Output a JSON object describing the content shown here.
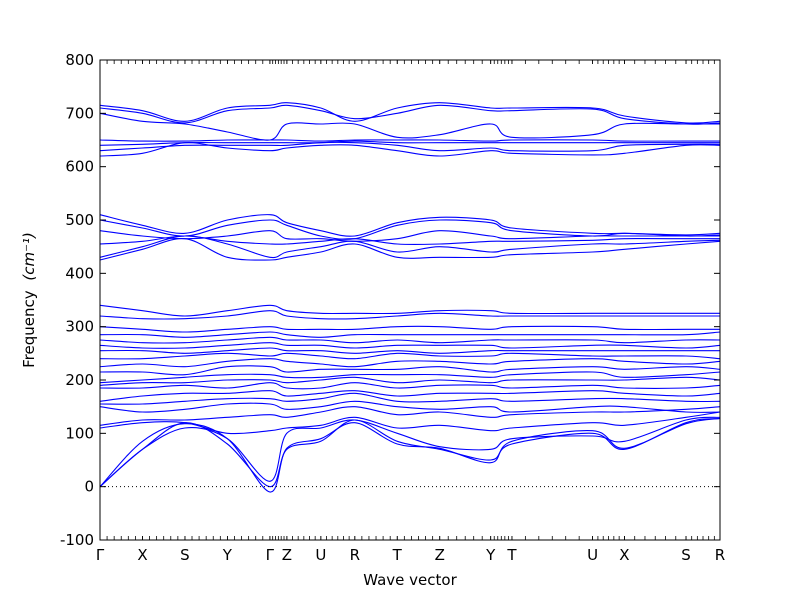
{
  "chart_data": {
    "type": "line",
    "title": "",
    "xlabel": "Wave vector",
    "ylabel": "Frequency",
    "ylabel_unit": "(cm⁻¹)",
    "ylim": [
      -100,
      800
    ],
    "yticks": [
      -100,
      0,
      100,
      200,
      300,
      400,
      500,
      600,
      700,
      800
    ],
    "zero_line": true,
    "grid": false,
    "legend": "none",
    "color": "#0000ff",
    "path_labels": [
      "Γ",
      "X",
      "S",
      "Y",
      "Γ",
      "Z",
      "U",
      "R",
      "T",
      "Z",
      "Y",
      "T",
      "U",
      "X",
      "S",
      "R"
    ],
    "path_positions": [
      0,
      1,
      2,
      3,
      4,
      4.4,
      5.2,
      6,
      7,
      8,
      9.2,
      9.7,
      11.6,
      12.35,
      13.8,
      14.6
    ],
    "x_range": [
      0,
      14.6
    ],
    "series": [
      {
        "values": [
          0,
          70,
          120,
          80,
          0,
          70,
          85,
          125,
          85,
          70,
          50,
          80,
          100,
          70,
          120,
          128
        ]
      },
      {
        "values": [
          0,
          85,
          118,
          90,
          -10,
          72,
          90,
          120,
          80,
          72,
          45,
          85,
          105,
          72,
          118,
          128
        ]
      },
      {
        "values": [
          0,
          70,
          110,
          90,
          10,
          100,
          110,
          125,
          100,
          75,
          70,
          90,
          95,
          85,
          125,
          130
        ]
      },
      {
        "values": [
          110,
          120,
          120,
          100,
          105,
          110,
          115,
          130,
          110,
          115,
          105,
          110,
          120,
          115,
          130,
          140
        ]
      },
      {
        "values": [
          115,
          125,
          125,
          130,
          135,
          130,
          140,
          150,
          135,
          140,
          130,
          135,
          140,
          140,
          145,
          150
        ]
      },
      {
        "values": [
          150,
          140,
          145,
          155,
          155,
          145,
          150,
          160,
          150,
          145,
          150,
          140,
          150,
          150,
          140,
          140
        ]
      },
      {
        "values": [
          155,
          155,
          160,
          165,
          165,
          160,
          165,
          175,
          160,
          160,
          165,
          160,
          165,
          165,
          160,
          160
        ]
      },
      {
        "values": [
          160,
          170,
          175,
          175,
          180,
          170,
          175,
          180,
          170,
          175,
          175,
          175,
          180,
          175,
          170,
          175
        ]
      },
      {
        "values": [
          185,
          185,
          190,
          185,
          195,
          185,
          185,
          195,
          185,
          190,
          190,
          185,
          190,
          185,
          185,
          190
        ]
      },
      {
        "values": [
          190,
          195,
          195,
          200,
          200,
          195,
          200,
          205,
          195,
          200,
          195,
          200,
          200,
          200,
          205,
          200
        ]
      },
      {
        "values": [
          195,
          200,
          205,
          210,
          210,
          205,
          205,
          210,
          210,
          210,
          205,
          210,
          215,
          205,
          210,
          215
        ]
      },
      {
        "values": [
          215,
          215,
          210,
          225,
          225,
          215,
          220,
          220,
          220,
          225,
          215,
          220,
          225,
          220,
          225,
          220
        ]
      },
      {
        "values": [
          225,
          230,
          225,
          235,
          240,
          235,
          230,
          225,
          235,
          235,
          230,
          235,
          240,
          235,
          230,
          235
        ]
      },
      {
        "values": [
          240,
          240,
          245,
          250,
          245,
          250,
          245,
          240,
          250,
          245,
          245,
          250,
          245,
          245,
          245,
          240
        ]
      },
      {
        "values": [
          255,
          255,
          250,
          255,
          260,
          255,
          255,
          250,
          255,
          250,
          255,
          255,
          255,
          255,
          255,
          255
        ]
      },
      {
        "values": [
          265,
          260,
          260,
          265,
          270,
          265,
          265,
          260,
          265,
          265,
          265,
          260,
          265,
          265,
          260,
          265
        ]
      },
      {
        "values": [
          275,
          270,
          270,
          275,
          280,
          275,
          275,
          270,
          275,
          270,
          275,
          275,
          275,
          270,
          275,
          275
        ]
      },
      {
        "values": [
          285,
          285,
          280,
          285,
          290,
          285,
          280,
          285,
          285,
          285,
          285,
          285,
          285,
          285,
          285,
          290
        ]
      },
      {
        "values": [
          300,
          295,
          290,
          295,
          300,
          295,
          295,
          295,
          300,
          300,
          295,
          300,
          300,
          295,
          295,
          295
        ]
      },
      {
        "values": [
          320,
          315,
          315,
          320,
          330,
          320,
          315,
          315,
          320,
          325,
          320,
          320,
          320,
          320,
          320,
          320
        ]
      },
      {
        "values": [
          340,
          330,
          320,
          330,
          340,
          330,
          325,
          325,
          325,
          330,
          330,
          325,
          325,
          325,
          325,
          325
        ]
      },
      {
        "values": [
          425,
          445,
          465,
          430,
          425,
          430,
          440,
          455,
          430,
          430,
          430,
          435,
          440,
          445,
          455,
          460
        ]
      },
      {
        "values": [
          430,
          450,
          470,
          455,
          430,
          440,
          450,
          460,
          440,
          450,
          440,
          445,
          455,
          455,
          460,
          462
        ]
      },
      {
        "values": [
          455,
          460,
          470,
          460,
          455,
          455,
          460,
          465,
          455,
          455,
          460,
          460,
          462,
          465,
          465,
          465
        ]
      },
      {
        "values": [
          480,
          470,
          465,
          470,
          480,
          465,
          465,
          460,
          465,
          480,
          470,
          465,
          470,
          470,
          470,
          470
        ]
      },
      {
        "values": [
          500,
          485,
          470,
          490,
          500,
          490,
          470,
          465,
          490,
          500,
          495,
          480,
          470,
          475,
          470,
          472
        ]
      },
      {
        "values": [
          510,
          490,
          475,
          500,
          510,
          495,
          480,
          470,
          495,
          505,
          500,
          485,
          475,
          475,
          472,
          475
        ]
      },
      {
        "values": [
          620,
          625,
          645,
          635,
          630,
          635,
          640,
          640,
          630,
          620,
          630,
          625,
          622,
          625,
          640,
          640
        ]
      },
      {
        "values": [
          630,
          635,
          640,
          640,
          640,
          640,
          645,
          645,
          640,
          630,
          635,
          630,
          630,
          640,
          642,
          642
        ]
      },
      {
        "values": [
          640,
          642,
          645,
          645,
          645,
          645,
          645,
          648,
          645,
          645,
          645,
          645,
          645,
          645,
          645,
          645
        ]
      },
      {
        "values": [
          650,
          648,
          648,
          650,
          650,
          650,
          648,
          650,
          650,
          650,
          648,
          650,
          650,
          648,
          648,
          648
        ]
      },
      {
        "values": [
          700,
          685,
          680,
          665,
          650,
          680,
          680,
          680,
          655,
          660,
          680,
          655,
          660,
          680,
          680,
          680
        ]
      },
      {
        "values": [
          710,
          700,
          682,
          705,
          710,
          715,
          705,
          690,
          700,
          715,
          705,
          705,
          708,
          690,
          680,
          682
        ]
      },
      {
        "values": [
          715,
          705,
          685,
          710,
          715,
          720,
          710,
          685,
          710,
          720,
          710,
          710,
          710,
          695,
          682,
          685
        ]
      }
    ]
  }
}
